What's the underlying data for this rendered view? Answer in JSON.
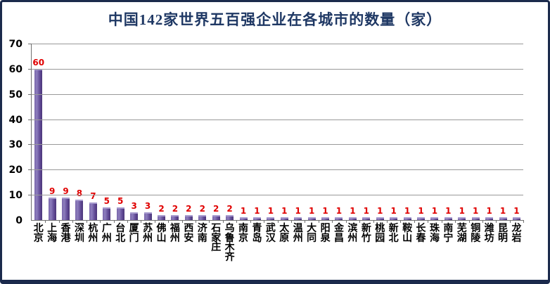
{
  "title": "中国142家世界五百强企业在各城市的数量（家）",
  "colors": {
    "frame_border": "#1b2a4c",
    "title_text": "#1f3864",
    "bar_purple": "#5f4894",
    "bar_highlight": "#8d7dbd",
    "value_label_red": "#e00000",
    "gridline_gray": "#999999",
    "axis_text": "#000000"
  },
  "chart_data": {
    "type": "bar",
    "title": "中国142家世界五百强企业在各城市的数量（家）",
    "xlabel": "",
    "ylabel": "",
    "categories": [
      "北京",
      "上海",
      "香港",
      "深圳",
      "杭州",
      "广州",
      "台北",
      "厦门",
      "苏州",
      "佛山",
      "福州",
      "西安",
      "济南",
      "石家庄",
      "乌鲁木齐",
      "南京",
      "青岛",
      "武汉",
      "太原",
      "温州",
      "大同",
      "阳泉",
      "金昌",
      "滨州",
      "新竹",
      "桃园",
      "新北",
      "鞍山",
      "长春",
      "珠海",
      "南宁",
      "芜湖",
      "铜陵",
      "潍坊",
      "昆明",
      "龙岩"
    ],
    "values": [
      60,
      9,
      9,
      8,
      7,
      5,
      5,
      3,
      3,
      2,
      2,
      2,
      2,
      2,
      2,
      1,
      1,
      1,
      1,
      1,
      1,
      1,
      1,
      1,
      1,
      1,
      1,
      1,
      1,
      1,
      1,
      1,
      1,
      1,
      1,
      1
    ],
    "ylim": [
      0,
      70
    ],
    "yticks": [
      0,
      10,
      20,
      30,
      40,
      50,
      60,
      70
    ],
    "grid": "horizontal",
    "legend": "none",
    "value_labels_shown": true,
    "bar_color_hex": "#5f4894",
    "value_label_color_hex": "#e00000"
  }
}
